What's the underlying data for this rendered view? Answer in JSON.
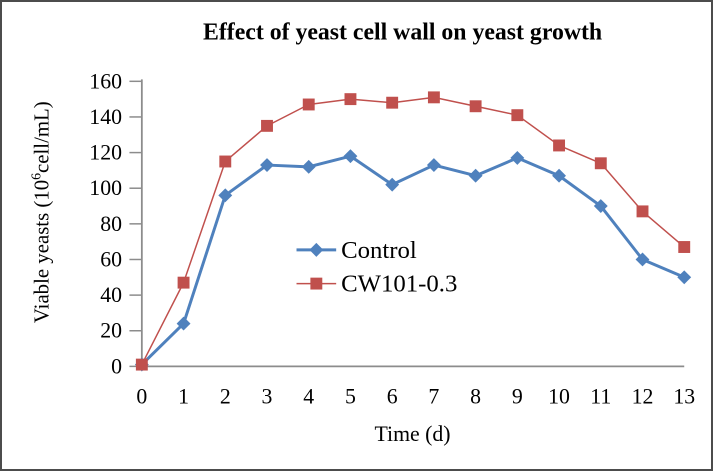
{
  "chart_data": {
    "type": "line",
    "title": "Effect of yeast cell wall on yeast growth",
    "xlabel": "Time (d)",
    "ylabel": "Viable yeasts (10⁶cell/mL)",
    "ylabel_parts": {
      "pre": "Viable yeasts (10",
      "sup": "6",
      "post": "cell/mL)"
    },
    "x": [
      0,
      1,
      2,
      3,
      4,
      5,
      6,
      7,
      8,
      9,
      10,
      11,
      12,
      13
    ],
    "y_ticks": [
      0,
      20,
      40,
      60,
      80,
      100,
      120,
      140,
      160
    ],
    "xlim": [
      0,
      13
    ],
    "ylim": [
      0,
      160
    ],
    "grid": false,
    "legend_position": "inside-middle-right",
    "axis_color": "#8c8c8c",
    "text_color": "#000000",
    "background_color": "#ffffff",
    "series": [
      {
        "name": "Control",
        "marker": "diamond",
        "color": "#4F81BD",
        "line_width": 3,
        "values": [
          1,
          24,
          96,
          113,
          112,
          118,
          102,
          113,
          107,
          117,
          107,
          90,
          60,
          50
        ]
      },
      {
        "name": "CW101-0.3",
        "marker": "square",
        "color": "#C0504D",
        "line_width": 1.5,
        "values": [
          1,
          47,
          115,
          135,
          147,
          150,
          148,
          151,
          146,
          141,
          124,
          114,
          87,
          67
        ]
      }
    ]
  }
}
